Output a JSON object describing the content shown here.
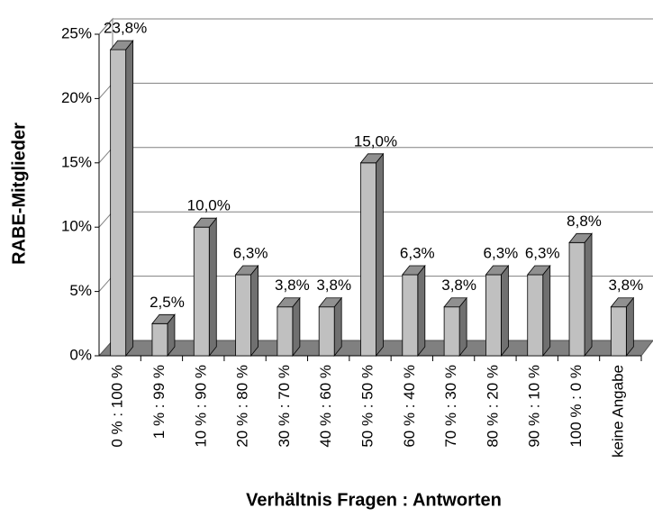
{
  "chart_data": {
    "type": "bar3d",
    "x_label": "Verhältnis Fragen : Antworten",
    "y_label": "RABE-Mitglieder",
    "categories": [
      "0 % : 100 %",
      "1 % : 99 %",
      "10 % : 90 %",
      "20 % : 80 %",
      "30 % : 70 %",
      "40 % : 60 %",
      "50 % : 50 %",
      "60 % : 40 %",
      "70 % : 30 %",
      "80 % : 20 %",
      "90 % : 10 %",
      "100 % : 0 %",
      "keine Angabe"
    ],
    "values": [
      23.8,
      2.5,
      10.0,
      6.3,
      3.8,
      3.8,
      15.0,
      6.3,
      3.8,
      6.3,
      6.3,
      8.8,
      3.8
    ],
    "value_labels": [
      "23,8%",
      "2,5%",
      "10,0%",
      "6,3%",
      "3,8%",
      "3,8%",
      "15,0%",
      "6,3%",
      "3,8%",
      "6,3%",
      "6,3%",
      "8,8%",
      "3,8%"
    ],
    "color": "#c0c0c0",
    "ylim": [
      0,
      25
    ],
    "yticks": [
      {
        "value": 0,
        "label": "0%"
      },
      {
        "value": 5,
        "label": "5%"
      },
      {
        "value": 10,
        "label": "10%"
      },
      {
        "value": 15,
        "label": "15%"
      },
      {
        "value": 20,
        "label": "20%"
      },
      {
        "value": 25,
        "label": "25%"
      }
    ],
    "grid": true
  }
}
